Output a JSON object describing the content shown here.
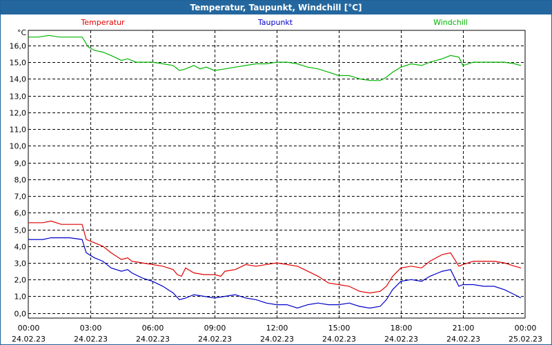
{
  "window": {
    "title": "Temperatur, Taupunkt, Windchill [°C]"
  },
  "chart_data": {
    "type": "line",
    "title": "Temperatur, Taupunkt, Windchill [°C]",
    "ylabel": "°C",
    "ylim": [
      -0.3,
      16.9
    ],
    "yticks": [
      0,
      1,
      2,
      3,
      4,
      5,
      6,
      7,
      8,
      9,
      10,
      11,
      12,
      13,
      14,
      15,
      16
    ],
    "ytick_labels": [
      "0,0",
      "1,0",
      "2,0",
      "3,0",
      "4,0",
      "5,0",
      "6,0",
      "7,0",
      "8,0",
      "9,0",
      "10,0",
      "11,0",
      "12,0",
      "13,0",
      "14,0",
      "15,0",
      "16,0"
    ],
    "xlim": [
      0,
      24
    ],
    "xticks": [
      0,
      3,
      6,
      9,
      12,
      15,
      18,
      21,
      24
    ],
    "xtick_labels": [
      {
        "time": "00:00",
        "date": "24.02.23"
      },
      {
        "time": "03:00",
        "date": "24.02.23"
      },
      {
        "time": "06:00",
        "date": "24.02.23"
      },
      {
        "time": "09:00",
        "date": "24.02.23"
      },
      {
        "time": "12:00",
        "date": "24.02.23"
      },
      {
        "time": "15:00",
        "date": "24.02.23"
      },
      {
        "time": "18:00",
        "date": "24.02.23"
      },
      {
        "time": "21:00",
        "date": "24.02.23"
      },
      {
        "time": "00:00",
        "date": "25.02.23"
      }
    ],
    "grid": true,
    "legend_placement": "top",
    "series": [
      {
        "name": "Temperatur",
        "color": "#e00000",
        "x": [
          0,
          0.7,
          1.1,
          1.6,
          2.0,
          2.6,
          2.8,
          3.2,
          3.6,
          4.0,
          4.5,
          4.8,
          5.0,
          5.5,
          6.0,
          6.5,
          7.0,
          7.2,
          7.4,
          7.6,
          8.0,
          8.5,
          9.0,
          9.3,
          9.5,
          10.0,
          10.5,
          11.0,
          11.5,
          12.0,
          12.5,
          13.0,
          13.5,
          14.0,
          14.5,
          15.0,
          15.5,
          16.0,
          16.5,
          17.0,
          17.3,
          17.6,
          18.0,
          18.5,
          19.0,
          19.4,
          20.0,
          20.4,
          20.8,
          21.0,
          21.5,
          22.0,
          22.5,
          23.0,
          23.5,
          23.8
        ],
        "y": [
          5.4,
          5.4,
          5.5,
          5.3,
          5.3,
          5.3,
          4.4,
          4.2,
          4.0,
          3.6,
          3.2,
          3.3,
          3.1,
          3.0,
          2.9,
          2.8,
          2.6,
          2.3,
          2.2,
          2.7,
          2.4,
          2.3,
          2.3,
          2.2,
          2.5,
          2.6,
          2.9,
          2.8,
          2.9,
          3.0,
          2.9,
          2.8,
          2.5,
          2.2,
          1.8,
          1.7,
          1.6,
          1.3,
          1.2,
          1.3,
          1.6,
          2.2,
          2.7,
          2.8,
          2.7,
          3.1,
          3.5,
          3.6,
          2.8,
          2.9,
          3.1,
          3.1,
          3.1,
          3.0,
          2.8,
          2.7
        ]
      },
      {
        "name": "Taupunkt",
        "color": "#0000c8",
        "x": [
          0,
          0.7,
          1.1,
          1.6,
          2.0,
          2.6,
          2.8,
          3.2,
          3.6,
          4.0,
          4.5,
          4.8,
          5.0,
          5.5,
          6.0,
          6.5,
          7.0,
          7.3,
          7.6,
          8.0,
          8.5,
          9.0,
          9.5,
          10.0,
          10.5,
          11.0,
          11.5,
          12.0,
          12.5,
          13.0,
          13.5,
          14.0,
          14.5,
          15.0,
          15.5,
          16.0,
          16.5,
          17.0,
          17.3,
          17.6,
          18.0,
          18.5,
          19.0,
          19.4,
          20.0,
          20.4,
          20.8,
          21.0,
          21.5,
          22.0,
          22.5,
          23.0,
          23.5,
          23.8
        ],
        "y": [
          4.4,
          4.4,
          4.5,
          4.5,
          4.5,
          4.4,
          3.6,
          3.3,
          3.1,
          2.7,
          2.5,
          2.6,
          2.4,
          2.1,
          1.9,
          1.6,
          1.2,
          0.8,
          0.9,
          1.1,
          1.0,
          0.9,
          1.0,
          1.1,
          0.9,
          0.8,
          0.6,
          0.5,
          0.5,
          0.3,
          0.5,
          0.6,
          0.5,
          0.5,
          0.6,
          0.4,
          0.3,
          0.4,
          0.8,
          1.4,
          1.9,
          2.0,
          1.9,
          2.2,
          2.5,
          2.6,
          1.6,
          1.7,
          1.7,
          1.6,
          1.6,
          1.4,
          1.1,
          0.9
        ]
      },
      {
        "name": "Windchill",
        "color": "#00b400",
        "x": [
          0,
          0.5,
          1.0,
          1.5,
          2.0,
          2.6,
          2.9,
          3.2,
          3.6,
          4.0,
          4.5,
          4.8,
          5.2,
          5.6,
          6.0,
          6.5,
          7.0,
          7.3,
          7.6,
          8.0,
          8.3,
          8.6,
          9.0,
          9.5,
          10.0,
          10.5,
          11.0,
          11.5,
          12.0,
          12.5,
          13.0,
          13.5,
          14.0,
          14.5,
          15.0,
          15.5,
          16.0,
          16.5,
          17.0,
          17.3,
          17.6,
          18.0,
          18.5,
          19.0,
          19.4,
          20.0,
          20.4,
          20.8,
          21.0,
          21.5,
          22.0,
          22.5,
          23.0,
          23.5,
          23.8
        ],
        "y": [
          16.5,
          16.5,
          16.6,
          16.5,
          16.5,
          16.5,
          15.9,
          15.7,
          15.6,
          15.4,
          15.1,
          15.2,
          15.0,
          15.0,
          15.0,
          14.9,
          14.8,
          14.5,
          14.6,
          14.8,
          14.6,
          14.7,
          14.5,
          14.6,
          14.7,
          14.8,
          14.9,
          14.9,
          15.0,
          15.0,
          14.9,
          14.7,
          14.6,
          14.4,
          14.2,
          14.2,
          14.0,
          13.9,
          13.9,
          14.1,
          14.4,
          14.7,
          14.9,
          14.8,
          15.0,
          15.2,
          15.4,
          15.3,
          14.8,
          15.0,
          15.0,
          15.0,
          15.0,
          14.9,
          14.8
        ]
      }
    ]
  }
}
